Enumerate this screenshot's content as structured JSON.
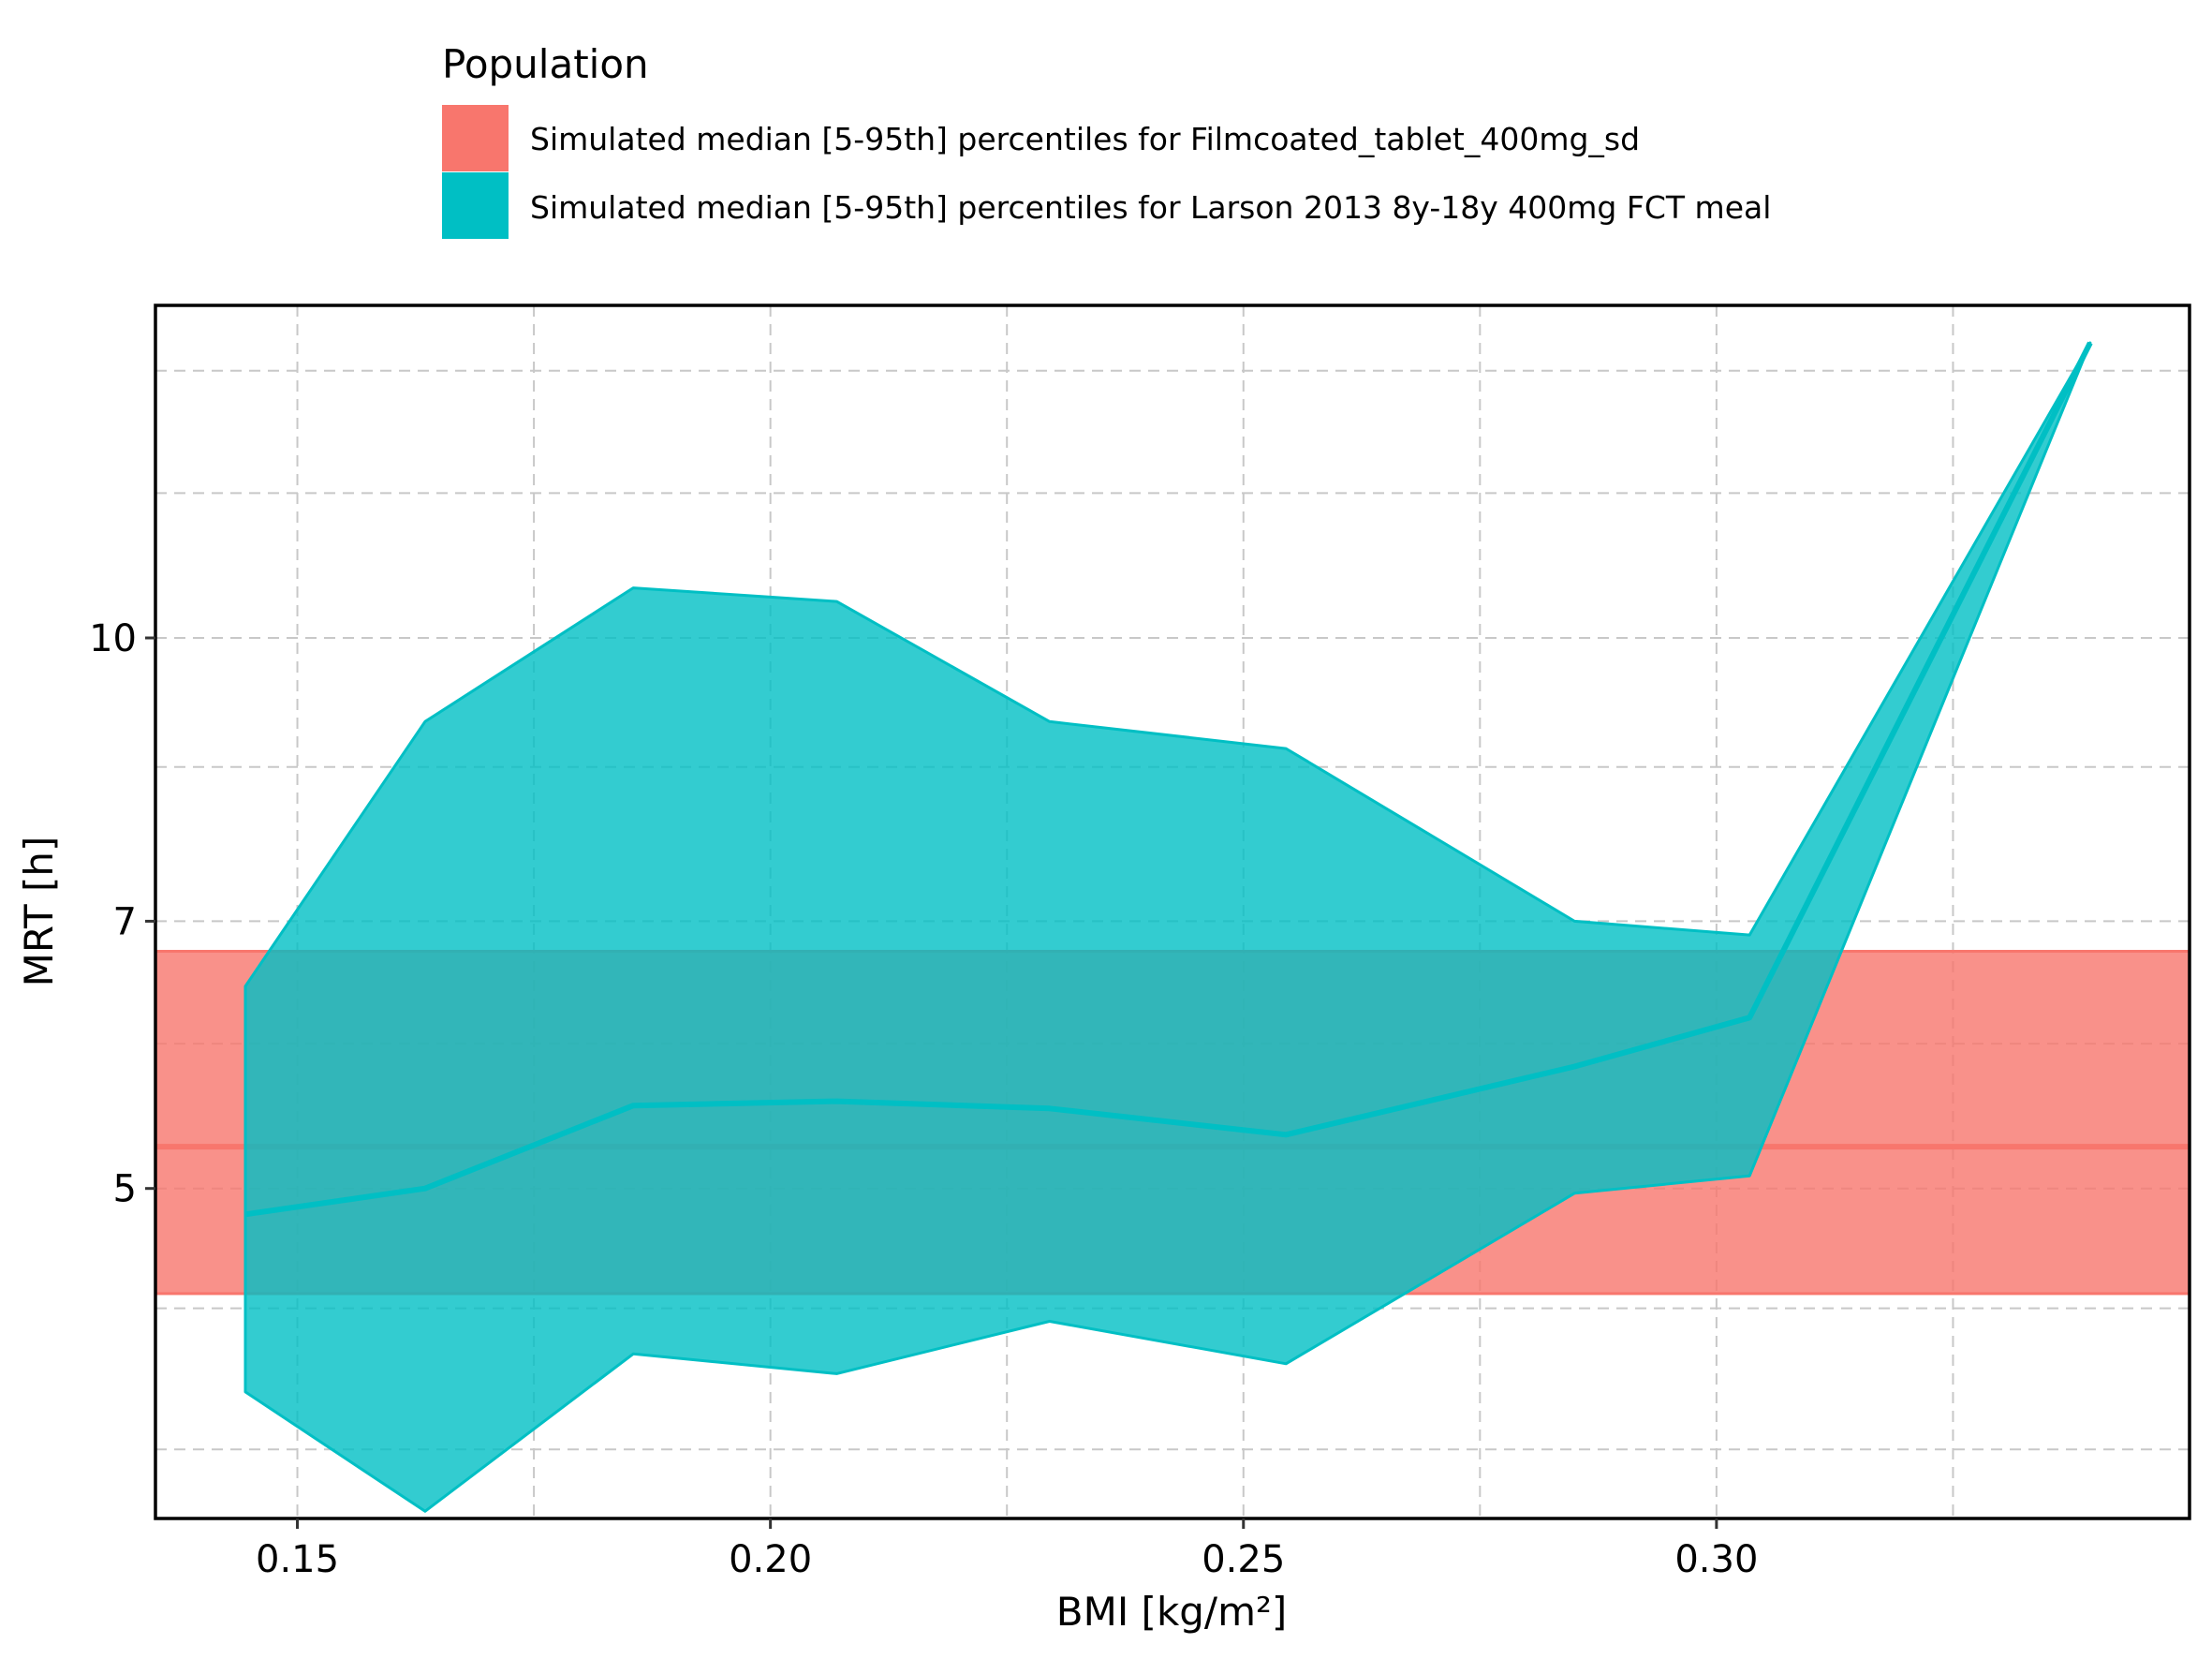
{
  "chart_data": {
    "type": "area",
    "xlabel": "BMI [kg/m²]",
    "ylabel": "MRT [h]",
    "xlim": [
      0.135,
      0.35
    ],
    "ylim_log": [
      3.3,
      15.2
    ],
    "y_scale": "log",
    "grid": true,
    "legend": {
      "title": "Population",
      "placement": "top",
      "entries": [
        {
          "label": "Simulated median [5-95th] percentiles for Filmcoated_tablet_400mg_sd",
          "color": "#F8766D"
        },
        {
          "label": "Simulated median [5-95th] percentiles for Larson 2013 8y-18y 400mg FCT meal",
          "color": "#00BFC4"
        }
      ]
    },
    "x_ticks": [
      0.15,
      0.2,
      0.25,
      0.3
    ],
    "x_tick_labels": [
      "0.15",
      "0.20",
      "0.25",
      "0.30"
    ],
    "x_minor_grid": [
      0.175,
      0.225,
      0.275,
      0.325
    ],
    "y_ticks": [
      5,
      7,
      10
    ],
    "y_tick_labels": [
      "5",
      "7",
      "10"
    ],
    "y_minor_grid": [
      3.6,
      4.3,
      6,
      8.5,
      12,
      14
    ],
    "series": [
      {
        "name": "Simulated median [5-95th] percentiles for Filmcoated_tablet_400mg_sd",
        "color": "#F8766D",
        "kind": "horizontal_band",
        "median": 5.27,
        "lower": 4.38,
        "upper": 6.74
      },
      {
        "name": "Simulated median [5-95th] percentiles for Larson 2013 8y-18y 400mg FCT meal",
        "color": "#00BFC4",
        "kind": "ribbon",
        "x": [
          0.1445,
          0.1635,
          0.1855,
          0.207,
          0.2295,
          0.2545,
          0.285,
          0.3035,
          0.3395
        ],
        "median": [
          4.84,
          5.0,
          5.55,
          5.58,
          5.53,
          5.35,
          5.83,
          6.2,
          14.5
        ],
        "lower": [
          3.87,
          3.33,
          4.06,
          3.96,
          4.23,
          4.01,
          4.97,
          5.08,
          14.5
        ],
        "upper": [
          6.45,
          9.0,
          10.65,
          10.47,
          9.0,
          8.7,
          7.0,
          6.88,
          14.5
        ]
      }
    ]
  }
}
